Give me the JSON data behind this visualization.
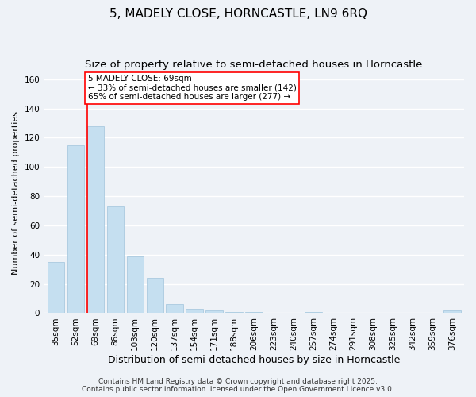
{
  "title": "5, MADELY CLOSE, HORNCASTLE, LN9 6RQ",
  "subtitle": "Size of property relative to semi-detached houses in Horncastle",
  "xlabel": "Distribution of semi-detached houses by size in Horncastle",
  "ylabel": "Number of semi-detached properties",
  "categories": [
    "35sqm",
    "52sqm",
    "69sqm",
    "86sqm",
    "103sqm",
    "120sqm",
    "137sqm",
    "154sqm",
    "171sqm",
    "188sqm",
    "206sqm",
    "223sqm",
    "240sqm",
    "257sqm",
    "274sqm",
    "291sqm",
    "308sqm",
    "325sqm",
    "342sqm",
    "359sqm",
    "376sqm"
  ],
  "values": [
    35,
    115,
    128,
    73,
    39,
    24,
    6,
    3,
    2,
    1,
    1,
    0,
    0,
    1,
    0,
    0,
    0,
    0,
    0,
    0,
    2
  ],
  "bar_color": "#c5dff0",
  "bar_edge_color": "#a0c4dc",
  "highlight_bar_index": 2,
  "redline_color": "red",
  "annotation_text_line1": "5 MADELY CLOSE: 69sqm",
  "annotation_text_line2": "← 33% of semi-detached houses are smaller (142)",
  "annotation_text_line3": "65% of semi-detached houses are larger (277) →",
  "ylim": [
    0,
    165
  ],
  "yticks": [
    0,
    20,
    40,
    60,
    80,
    100,
    120,
    140,
    160
  ],
  "background_color": "#eef2f7",
  "grid_color": "#ffffff",
  "footer_line1": "Contains HM Land Registry data © Crown copyright and database right 2025.",
  "footer_line2": "Contains public sector information licensed under the Open Government Licence v3.0.",
  "title_fontsize": 11,
  "subtitle_fontsize": 9.5,
  "xlabel_fontsize": 9,
  "ylabel_fontsize": 8,
  "tick_fontsize": 7.5,
  "annotation_fontsize": 7.5,
  "footer_fontsize": 6.5
}
